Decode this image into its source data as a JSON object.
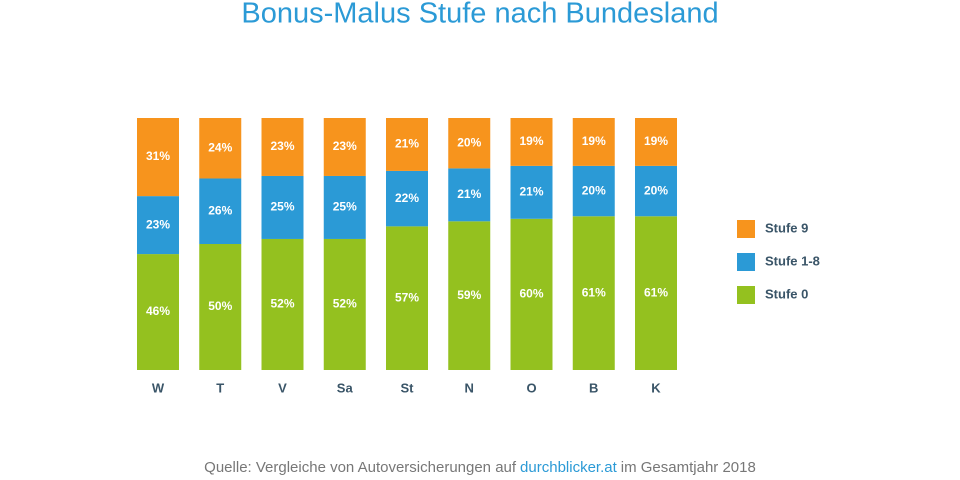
{
  "chart_data": {
    "type": "stacked_bar",
    "title": "Bonus-Malus Stufe nach Bundesland",
    "categories": [
      "W",
      "T",
      "V",
      "Sa",
      "St",
      "N",
      "O",
      "B",
      "K"
    ],
    "ylim": [
      0,
      100
    ],
    "series": [
      {
        "name": "Stufe 0",
        "color": "#94c11f",
        "values": [
          46,
          50,
          52,
          52,
          57,
          59,
          60,
          61,
          61
        ],
        "value_labels": [
          "46%",
          "50%",
          "52%",
          "52%",
          "57%",
          "59%",
          "60%",
          "61%",
          "61%"
        ]
      },
      {
        "name": "Stufe 1-8",
        "color": "#2b9ad6",
        "values": [
          23,
          26,
          25,
          25,
          22,
          21,
          21,
          20,
          20
        ],
        "value_labels": [
          "23%",
          "26%",
          "25%",
          "25%",
          "22%",
          "21%",
          "21%",
          "20%",
          "20%"
        ]
      },
      {
        "name": "Stufe 9",
        "color": "#f7941d",
        "values": [
          31,
          24,
          23,
          23,
          21,
          20,
          19,
          19,
          19
        ],
        "value_labels": [
          "31%",
          "24%",
          "23%",
          "23%",
          "21%",
          "20%",
          "19%",
          "19%",
          "19%"
        ]
      }
    ],
    "source": [
      "Quelle: Vergleiche von Autoversicherungen auf",
      "durchblicker.at",
      "im Gesamtjahr 2018"
    ]
  }
}
